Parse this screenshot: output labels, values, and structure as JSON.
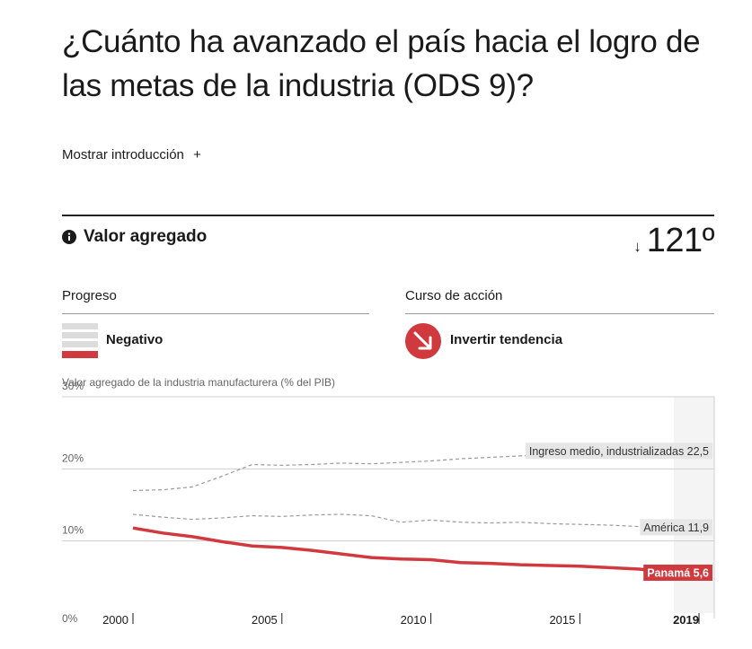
{
  "title": "¿Cuánto ha avanzado el país hacia el logro de las metas de la industria (ODS 9)?",
  "intro": {
    "label": "Mostrar introducción",
    "icon": "plus-icon",
    "symbol": "+"
  },
  "indicator": {
    "icon": "info-icon",
    "label": "Valor agregado",
    "rank_arrow": "↓",
    "rank": "121º"
  },
  "progress": {
    "header": "Progreso",
    "value": "Negativo",
    "icon": "progress-bars-icon",
    "color": "#d0393e"
  },
  "course": {
    "header": "Curso de acción",
    "value": "Invertir tendencia",
    "icon": "reverse-arrow-icon",
    "color": "#d0393e"
  },
  "chart_data": {
    "type": "line",
    "ylabel": "Valor agregado de la industria manufacturera (% del PIB)",
    "ylim": [
      0,
      30
    ],
    "yticks": [
      {
        "value": 30,
        "label": "30%"
      },
      {
        "value": 20,
        "label": "20%"
      },
      {
        "value": 10,
        "label": "10%"
      },
      {
        "value": 0,
        "label": "0%"
      }
    ],
    "xlim": [
      2000,
      2019
    ],
    "xticks": [
      {
        "value": 2000,
        "label": "2000"
      },
      {
        "value": 2005,
        "label": "2005"
      },
      {
        "value": 2010,
        "label": "2010"
      },
      {
        "value": 2015,
        "label": "2015"
      },
      {
        "value": 2019,
        "label": "2019"
      }
    ],
    "x": [
      2000,
      2001,
      2002,
      2003,
      2004,
      2005,
      2006,
      2007,
      2008,
      2009,
      2010,
      2011,
      2012,
      2013,
      2014,
      2015,
      2016,
      2017,
      2018,
      2019
    ],
    "series": [
      {
        "name": "Ingreso medio, industrializadas",
        "label_value": "22,5",
        "style": "dashed",
        "color": "#9a9a9a",
        "label_bg": "#e6e6e6",
        "label_color": "#333333",
        "values": [
          17.0,
          17.1,
          17.5,
          19.0,
          20.6,
          20.5,
          20.6,
          20.8,
          20.7,
          20.9,
          21.1,
          21.4,
          21.6,
          21.8,
          22.0,
          22.1,
          22.3,
          22.4,
          22.5,
          22.5
        ]
      },
      {
        "name": "América",
        "label_value": "11,9",
        "style": "dashed",
        "color": "#9a9a9a",
        "label_bg": "#e6e6e6",
        "label_color": "#333333",
        "values": [
          13.7,
          13.3,
          13.0,
          13.2,
          13.5,
          13.4,
          13.6,
          13.7,
          13.5,
          12.6,
          12.9,
          12.6,
          12.5,
          12.6,
          12.4,
          12.3,
          12.2,
          12.0,
          11.9,
          11.9
        ]
      },
      {
        "name": "Panamá",
        "label_value": "5,6",
        "style": "solid",
        "color": "#d0393e",
        "label_bg": "#d0393e",
        "label_color": "#ffffff",
        "values": [
          11.8,
          11.1,
          10.6,
          9.9,
          9.3,
          9.1,
          8.7,
          8.2,
          7.7,
          7.5,
          7.4,
          7.0,
          6.9,
          6.7,
          6.6,
          6.5,
          6.3,
          6.1,
          5.6,
          5.6
        ]
      }
    ],
    "grid": true,
    "highlight_x": 2019
  }
}
